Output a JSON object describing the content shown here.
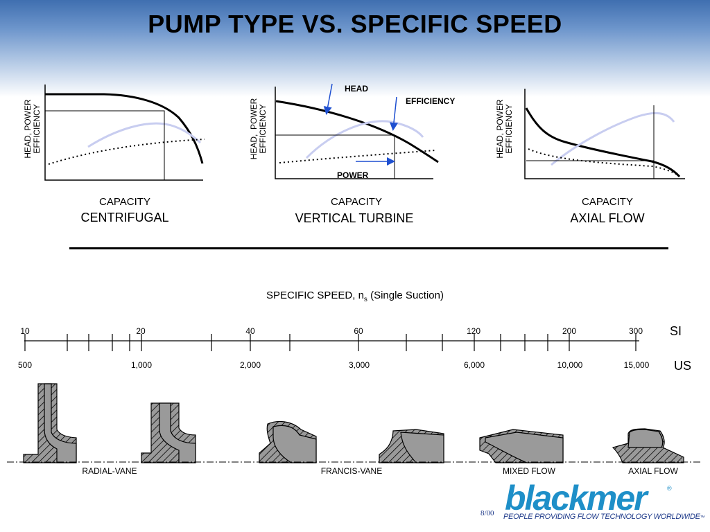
{
  "title": "PUMP TYPE VS. SPECIFIC SPEED",
  "panels": [
    {
      "ylabel": "HEAD, POWER\nEFFICIENCY",
      "xlabel": "CAPACITY",
      "name": "CENTRIFUGAL"
    },
    {
      "ylabel": "HEAD,  POWER\nEFFICIENCY",
      "xlabel": "CAPACITY",
      "name": "VERTICAL TURBINE"
    },
    {
      "ylabel": "HEAD, POWER\nEFFICIENCY",
      "xlabel": "CAPACITY",
      "name": "AXIAL FLOW"
    }
  ],
  "callouts": {
    "head": "HEAD",
    "efficiency": "EFFICIENCY",
    "power": "POWER"
  },
  "specific_speed": {
    "title_prefix": "SPECIFIC SPEED, n",
    "title_sub": "s",
    "title_suffix": " (Single Suction)",
    "si_unit": "SI",
    "us_unit": "US",
    "si_ticks": [
      "10",
      "20",
      "40",
      "60",
      "120",
      "200",
      "300"
    ],
    "us_ticks": [
      "500",
      "1,000",
      "2,000",
      "3,000",
      "6,000",
      "10,000",
      "15,000"
    ]
  },
  "impellers": [
    "RADIAL-VANE",
    "FRANCIS-VANE",
    "MIXED FLOW",
    "AXIAL FLOW"
  ],
  "footer": {
    "date": "8/00",
    "brand": "blackmer",
    "reg": "®",
    "tagline": "PEOPLE PROVIDING FLOW TECHNOLOGY WORLDWIDE",
    "tagline_mark": "™"
  },
  "colors": {
    "curve": "#000000",
    "efficiency": "#c8cdf0",
    "arrow": "#1e4fd0",
    "impeller_fill": "#9a9a9a",
    "brand": "#1e8fc8"
  }
}
